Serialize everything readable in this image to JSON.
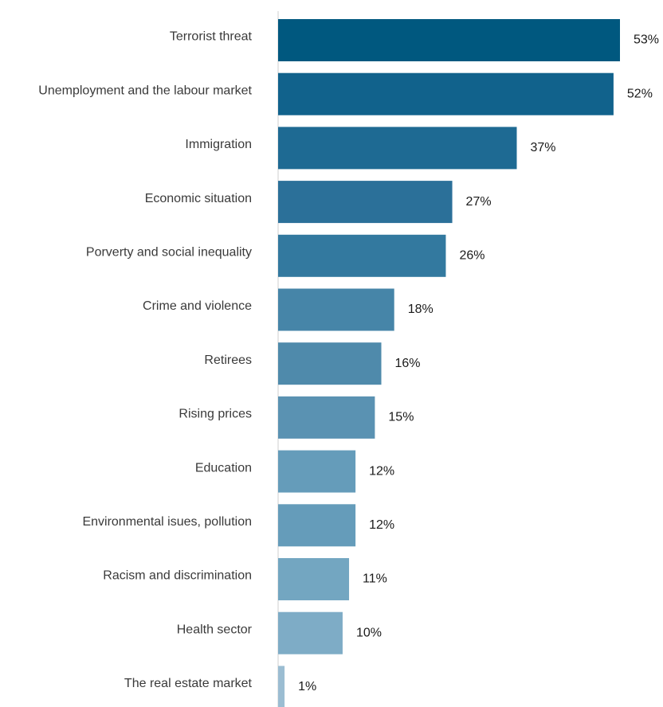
{
  "chart_data": {
    "type": "bar",
    "orientation": "horizontal",
    "categories": [
      "Terrorist threat",
      "Unemployment and the labour market",
      "Immigration",
      "Economic situation",
      "Porverty and social inequality",
      "Crime and violence",
      "Retirees",
      "Rising prices",
      "Education",
      "Environmental isues, pollution",
      "Racism and discrimination",
      "Health sector",
      "The real estate market"
    ],
    "values": [
      53,
      52,
      37,
      27,
      26,
      18,
      16,
      15,
      12,
      12,
      11,
      10,
      1
    ],
    "value_labels": [
      "53%",
      "52%",
      "37%",
      "27%",
      "26%",
      "18%",
      "16%",
      "15%",
      "12%",
      "12%",
      "11%",
      "10%",
      "1%"
    ],
    "colors": [
      "#00587f",
      "#11628c",
      "#1e6a93",
      "#2b7099",
      "#33799f",
      "#4685a8",
      "#4f8aab",
      "#5a92b2",
      "#659cba",
      "#659cba",
      "#73a6c1",
      "#7eacc6",
      "#9bbdd2"
    ],
    "xlim": [
      0,
      54
    ],
    "grid": false,
    "legend": "none"
  }
}
